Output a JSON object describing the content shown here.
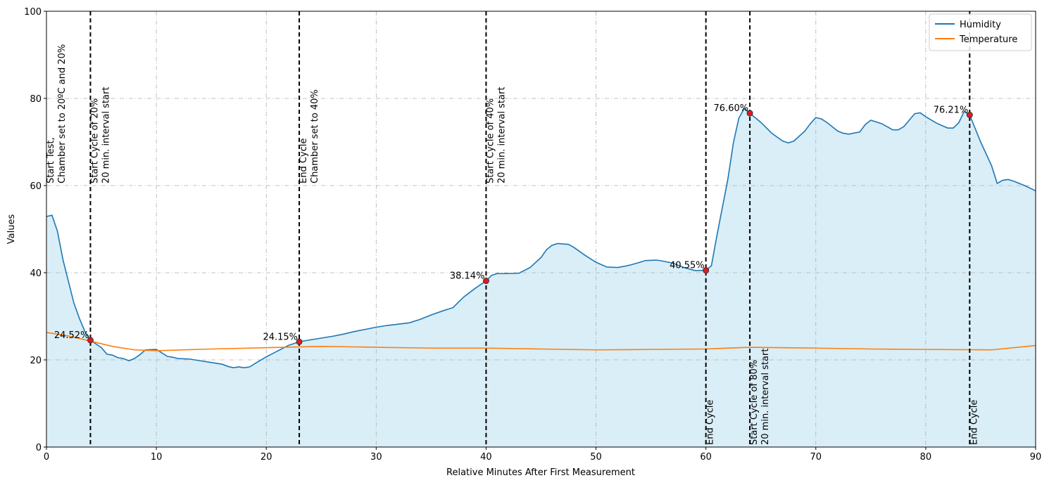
{
  "chart_data": {
    "type": "line",
    "xlabel": "Relative Minutes After First Measurement",
    "ylabel": "Values",
    "xlim": [
      0,
      90
    ],
    "ylim": [
      0,
      100
    ],
    "xticks": [
      0,
      10,
      20,
      30,
      40,
      50,
      60,
      70,
      80,
      90
    ],
    "yticks": [
      0,
      20,
      40,
      60,
      80,
      100
    ],
    "grid": true,
    "legend": "upper right",
    "fill_color": "#d9eef7",
    "series": [
      {
        "name": "Humidity",
        "color": "#1f77b4",
        "fill": true,
        "x": [
          0,
          0.5,
          1,
          1.5,
          2,
          2.5,
          3,
          3.5,
          4,
          5,
          5.5,
          6,
          6.5,
          7,
          7.5,
          8,
          8.5,
          9,
          10,
          10.5,
          11,
          11.5,
          12,
          13,
          14,
          15,
          16,
          16.5,
          17,
          17.5,
          18,
          18.5,
          19,
          20,
          21,
          22,
          23,
          24,
          25,
          26,
          27,
          28,
          29,
          30,
          31,
          32,
          33,
          34,
          35,
          36,
          37,
          37.5,
          38,
          39,
          40,
          40.5,
          41,
          42,
          43,
          44,
          45,
          45.5,
          46,
          46.5,
          47.5,
          48,
          49,
          50,
          51,
          52,
          53,
          54,
          54.5,
          55.5,
          56,
          57,
          58,
          59,
          60,
          60.5,
          61,
          62,
          62.5,
          63,
          63.5,
          64,
          65,
          66,
          67,
          67.5,
          68,
          69,
          69.5,
          70,
          70.5,
          71,
          72,
          72.5,
          73,
          74,
          74.5,
          75,
          76,
          77,
          77.5,
          78,
          79,
          79.5,
          80,
          81,
          82,
          82.5,
          83,
          83.5,
          84,
          85,
          86,
          86.5,
          87,
          87.5,
          88,
          89,
          90
        ],
        "values": [
          52.9,
          53.2,
          49.5,
          43,
          38,
          33,
          29.5,
          26.5,
          24.52,
          22.8,
          21.3,
          21.1,
          20.5,
          20.3,
          19.8,
          20.3,
          21.2,
          22.3,
          22.4,
          21.6,
          20.8,
          20.6,
          20.3,
          20.2,
          19.8,
          19.4,
          19.0,
          18.5,
          18.2,
          18.4,
          18.2,
          18.4,
          19.2,
          20.7,
          22.0,
          23.3,
          24.15,
          24.6,
          25.0,
          25.4,
          25.9,
          26.5,
          27,
          27.5,
          27.9,
          28.2,
          28.5,
          29.3,
          30.3,
          31.2,
          32,
          33.3,
          34.5,
          36.4,
          38.14,
          39.4,
          39.8,
          39.8,
          39.9,
          41.2,
          43.5,
          45.3,
          46.3,
          46.7,
          46.5,
          45.8,
          44,
          42.4,
          41.3,
          41.2,
          41.7,
          42.4,
          42.8,
          42.9,
          42.7,
          42.2,
          41.2,
          40.5,
          40.55,
          41.6,
          48.5,
          61.5,
          69.8,
          75.5,
          77.7,
          76.6,
          74.5,
          72,
          70.2,
          69.8,
          70.2,
          72.5,
          74.2,
          75.6,
          75.3,
          74.5,
          72.5,
          72,
          71.8,
          72.3,
          74,
          75,
          74.2,
          72.8,
          72.8,
          73.5,
          76.5,
          76.7,
          75.8,
          74.3,
          73.2,
          73.2,
          74.4,
          77.0,
          76.21,
          70,
          64.5,
          60.5,
          61.2,
          61.4,
          61,
          60,
          58.8
        ]
      },
      {
        "name": "Temperature",
        "color": "#ff7f0e",
        "fill": false,
        "x": [
          0,
          2,
          4,
          6,
          8,
          10,
          15,
          20,
          25,
          30,
          35,
          40,
          45,
          50,
          55,
          60,
          64,
          70,
          75,
          80,
          86,
          90
        ],
        "values": [
          26.3,
          25.5,
          24.3,
          23.1,
          22.3,
          22.1,
          22.5,
          22.8,
          23.1,
          22.9,
          22.7,
          22.7,
          22.5,
          22.3,
          22.4,
          22.5,
          22.9,
          22.7,
          22.5,
          22.4,
          22.3,
          23.3
        ]
      }
    ],
    "vlines": [
      4,
      23,
      40,
      60,
      64,
      84
    ],
    "markers": [
      {
        "x": 4,
        "value": 24.52,
        "label": "24.52%"
      },
      {
        "x": 23,
        "value": 24.15,
        "label": "24.15%"
      },
      {
        "x": 40,
        "value": 38.14,
        "label": "38.14%"
      },
      {
        "x": 60,
        "value": 40.55,
        "label": "40.55%"
      },
      {
        "x": 64,
        "value": 76.6,
        "label": "76.60%"
      },
      {
        "x": 84,
        "value": 76.21,
        "label": "76.21%"
      }
    ],
    "annotations": [
      {
        "x": 0,
        "y": 60,
        "lines": [
          "Start Test,",
          "Chamber set to 20ºC and 20%"
        ]
      },
      {
        "x": 4,
        "y": 60,
        "lines": [
          "Start Cycle of 20%",
          "20 min. interval start"
        ]
      },
      {
        "x": 23,
        "y": 60,
        "lines": [
          "End Cycle",
          "Chamber set to 40%"
        ]
      },
      {
        "x": 40,
        "y": 60,
        "lines": [
          "Start Cycle of 40%",
          "20 min. interval start"
        ]
      },
      {
        "x": 60,
        "y": 0,
        "lines": [
          "End Cycle"
        ]
      },
      {
        "x": 64,
        "y": 0,
        "lines": [
          "Start Cycle of 80%",
          "20 min. interval start"
        ]
      },
      {
        "x": 84,
        "y": 0,
        "lines": [
          "End Cycle"
        ]
      }
    ]
  }
}
